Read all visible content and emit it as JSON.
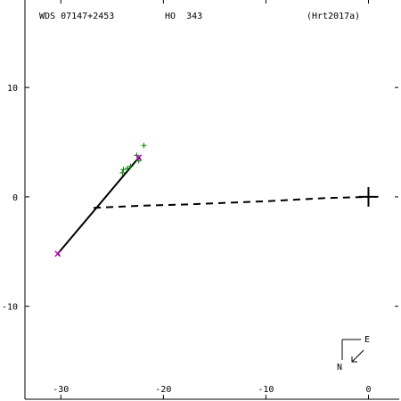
{
  "header": {
    "wds_id": "WDS 07147+2453",
    "discoverer": "HO  343",
    "reference": "(Hrt2017a)"
  },
  "orientation": {
    "north_label": "N",
    "east_label": "E"
  },
  "colors": {
    "axes": "#000000",
    "orbit": "#000000",
    "observations": "#008000",
    "predicted": "#cc00cc",
    "node_line": "#000000",
    "primary_star": "#000000"
  },
  "chart_data": {
    "type": "scatter",
    "title": "",
    "xlabel": "",
    "ylabel": "",
    "xlim": [
      -33.5,
      3
    ],
    "ylim": [
      -18.5,
      18
    ],
    "x_ticks": [
      {
        "value": -30,
        "label": "-30"
      },
      {
        "value": -20,
        "label": "-20"
      },
      {
        "value": -10,
        "label": "-10"
      },
      {
        "value": 0,
        "label": "0"
      }
    ],
    "y_ticks": [
      {
        "value": 10,
        "label": "10"
      },
      {
        "value": 0,
        "label": "0"
      },
      {
        "value": -10,
        "label": "-10"
      }
    ],
    "grid": false,
    "orbit_segment": [
      [
        -30.3,
        -5.2
      ],
      [
        -22.3,
        3.7
      ]
    ],
    "node_line": [
      [
        -26.8,
        -1.0
      ],
      [
        -22.0,
        -0.8
      ],
      [
        -18.0,
        -0.7
      ],
      [
        -10.0,
        -0.4
      ],
      [
        -4.0,
        -0.1
      ],
      [
        0.0,
        0.0
      ]
    ],
    "observations": [
      [
        -21.9,
        4.7
      ],
      [
        -22.4,
        3.3
      ],
      [
        -22.6,
        3.8
      ],
      [
        -23.2,
        2.8
      ],
      [
        -23.5,
        2.6
      ],
      [
        -23.9,
        2.5
      ],
      [
        -24.0,
        2.2
      ]
    ],
    "predicted_positions": [
      [
        -22.4,
        3.6
      ],
      [
        -30.3,
        -5.2
      ]
    ],
    "primary": [
      0,
      0
    ]
  }
}
